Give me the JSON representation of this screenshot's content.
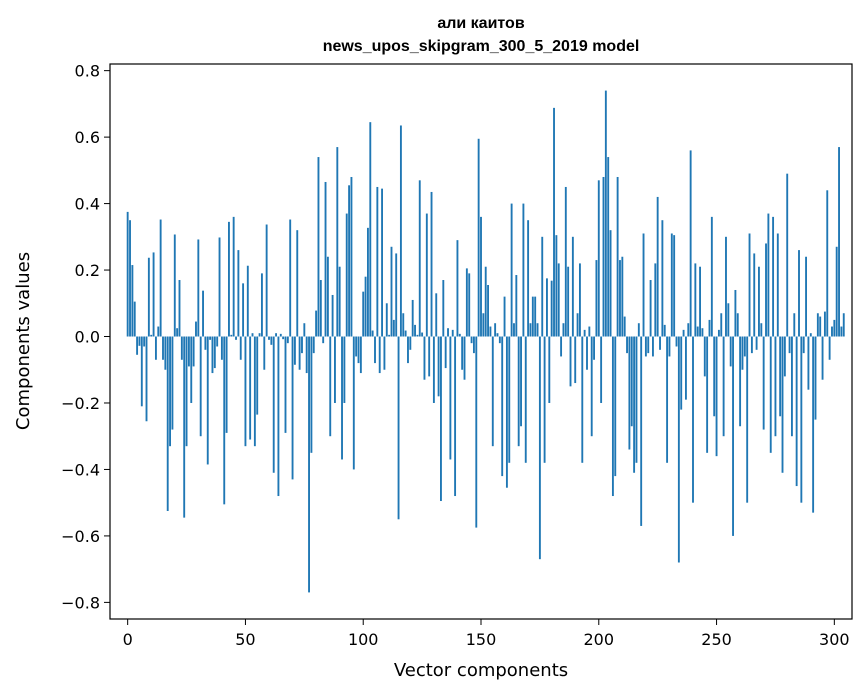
{
  "chart_data": {
    "type": "bar",
    "title_line1": "али каитов",
    "title_line2": "news_upos_skipgram_300_5_2019 model",
    "xlabel": "Vector components",
    "ylabel": "Components values",
    "xlim": [
      -7.5,
      307.5
    ],
    "ylim": [
      -0.85,
      0.82
    ],
    "xticks": [
      0,
      50,
      100,
      150,
      200,
      250,
      300
    ],
    "xtick_labels": [
      "0",
      "50",
      "100",
      "150",
      "200",
      "250",
      "300"
    ],
    "yticks": [
      -0.8,
      -0.6,
      -0.4,
      -0.2,
      0.0,
      0.2,
      0.4,
      0.6,
      0.8
    ],
    "ytick_labels": [
      "−0.8",
      "−0.6",
      "−0.4",
      "−0.2",
      "0.0",
      "0.2",
      "0.4",
      "0.6",
      "0.8"
    ],
    "grid": false,
    "bar_color": "#1f77b4",
    "values": [
      0.375,
      0.35,
      0.215,
      0.105,
      -0.055,
      -0.028,
      -0.21,
      -0.03,
      -0.255,
      0.237,
      0.005,
      0.253,
      -0.07,
      0.03,
      0.352,
      -0.07,
      -0.1,
      -0.525,
      -0.33,
      -0.28,
      0.307,
      0.025,
      0.17,
      -0.07,
      -0.545,
      -0.33,
      -0.09,
      -0.2,
      -0.09,
      0.045,
      0.292,
      -0.3,
      0.138,
      -0.04,
      -0.385,
      -0.01,
      -0.11,
      -0.095,
      -0.03,
      0.298,
      -0.07,
      -0.505,
      -0.29,
      0.345,
      0.005,
      0.36,
      -0.01,
      0.26,
      -0.07,
      0.16,
      -0.33,
      0.213,
      -0.31,
      0.01,
      -0.33,
      -0.235,
      0.01,
      0.19,
      -0.1,
      0.337,
      -0.01,
      -0.025,
      -0.41,
      0.01,
      -0.48,
      0.008,
      -0.008,
      -0.29,
      -0.02,
      0.352,
      -0.43,
      -0.085,
      0.32,
      -0.1,
      -0.05,
      0.04,
      -0.11,
      -0.77,
      -0.35,
      -0.05,
      0.078,
      0.54,
      0.17,
      -0.02,
      0.465,
      0.24,
      -0.3,
      0.125,
      -0.2,
      0.57,
      0.21,
      -0.37,
      -0.2,
      0.37,
      0.455,
      0.48,
      -0.4,
      -0.06,
      -0.08,
      -0.11,
      0.135,
      0.18,
      0.327,
      0.645,
      0.018,
      -0.08,
      0.45,
      -0.11,
      0.445,
      -0.1,
      0.1,
      0.005,
      0.27,
      0.05,
      0.25,
      -0.55,
      0.635,
      0.07,
      0.018,
      -0.08,
      -0.04,
      0.11,
      0.035,
      0.005,
      0.47,
      0.012,
      -0.13,
      0.37,
      -0.12,
      0.435,
      -0.2,
      0.13,
      -0.18,
      -0.495,
      0.17,
      -0.095,
      0.025,
      -0.37,
      0.02,
      -0.48,
      0.29,
      0.008,
      -0.1,
      -0.13,
      0.205,
      0.19,
      -0.02,
      -0.05,
      -0.575,
      0.595,
      0.36,
      0.07,
      0.21,
      0.155,
      0.03,
      -0.33,
      0.04,
      0.01,
      -0.02,
      -0.42,
      0.12,
      -0.455,
      -0.38,
      0.4,
      0.04,
      0.185,
      -0.33,
      -0.27,
      0.4,
      -0.38,
      0.35,
      0.04,
      0.12,
      0.12,
      0.04,
      -0.67,
      0.3,
      -0.38,
      0.175,
      -0.2,
      0.168,
      0.688,
      0.305,
      0.22,
      -0.06,
      0.04,
      0.45,
      0.21,
      -0.15,
      0.3,
      -0.14,
      0.07,
      0.22,
      -0.38,
      0.02,
      -0.1,
      0.03,
      -0.3,
      -0.07,
      0.23,
      0.47,
      -0.2,
      0.48,
      0.74,
      0.54,
      0.32,
      -0.48,
      -0.42,
      0.48,
      0.23,
      0.24,
      0.06,
      -0.05,
      -0.34,
      -0.27,
      -0.41,
      -0.38,
      0.04,
      -0.57,
      0.31,
      -0.06,
      -0.05,
      0.17,
      -0.06,
      0.22,
      0.42,
      -0.04,
      0.35,
      0.035,
      -0.38,
      -0.06,
      0.31,
      0.305,
      -0.03,
      -0.68,
      -0.22,
      0.02,
      -0.19,
      0.04,
      0.56,
      -0.5,
      0.22,
      0.03,
      0.21,
      0.025,
      -0.12,
      -0.35,
      0.05,
      0.36,
      -0.24,
      -0.36,
      0.02,
      0.07,
      -0.3,
      0.3,
      0.1,
      -0.09,
      -0.6,
      0.14,
      0.07,
      -0.27,
      -0.1,
      -0.06,
      -0.5,
      0.31,
      -0.05,
      0.25,
      -0.04,
      0.21,
      0.04,
      -0.28,
      0.28,
      0.37,
      -0.35,
      0.36,
      -0.3,
      0.31,
      -0.24,
      -0.41,
      -0.12,
      0.49,
      -0.05,
      -0.3,
      0.07,
      -0.45,
      0.26,
      -0.5,
      -0.05,
      0.24,
      -0.16,
      0.01,
      -0.53,
      -0.25,
      0.07,
      0.06,
      -0.13,
      0.075,
      0.44,
      -0.07,
      0.03,
      0.05,
      0.27,
      0.57,
      0.03,
      0.07
    ]
  }
}
